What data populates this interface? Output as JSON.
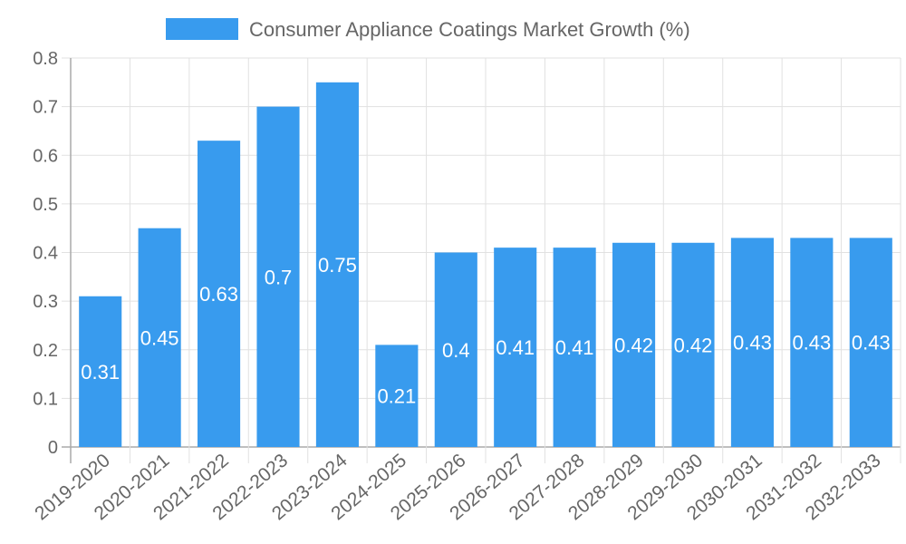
{
  "chart_data": {
    "type": "bar",
    "title": "",
    "legend": {
      "label": "Consumer Appliance Coatings Market Growth (%)",
      "position": "top"
    },
    "categories": [
      "2019-2020",
      "2020-2021",
      "2021-2022",
      "2022-2023",
      "2023-2024",
      "2024-2025",
      "2025-2026",
      "2026-2027",
      "2027-2028",
      "2028-2029",
      "2029-2030",
      "2030-2031",
      "2031-2032",
      "2032-2033"
    ],
    "values": [
      0.31,
      0.45,
      0.63,
      0.7,
      0.75,
      0.21,
      0.4,
      0.41,
      0.41,
      0.42,
      0.42,
      0.43,
      0.43,
      0.43
    ],
    "ylim": [
      0,
      0.8
    ],
    "yticks": [
      "0",
      "0.1",
      "0.2",
      "0.3",
      "0.4",
      "0.5",
      "0.6",
      "0.7",
      "0.8"
    ],
    "xlabel": "",
    "ylabel": "",
    "grid": true,
    "bar_color": "#389bee"
  }
}
